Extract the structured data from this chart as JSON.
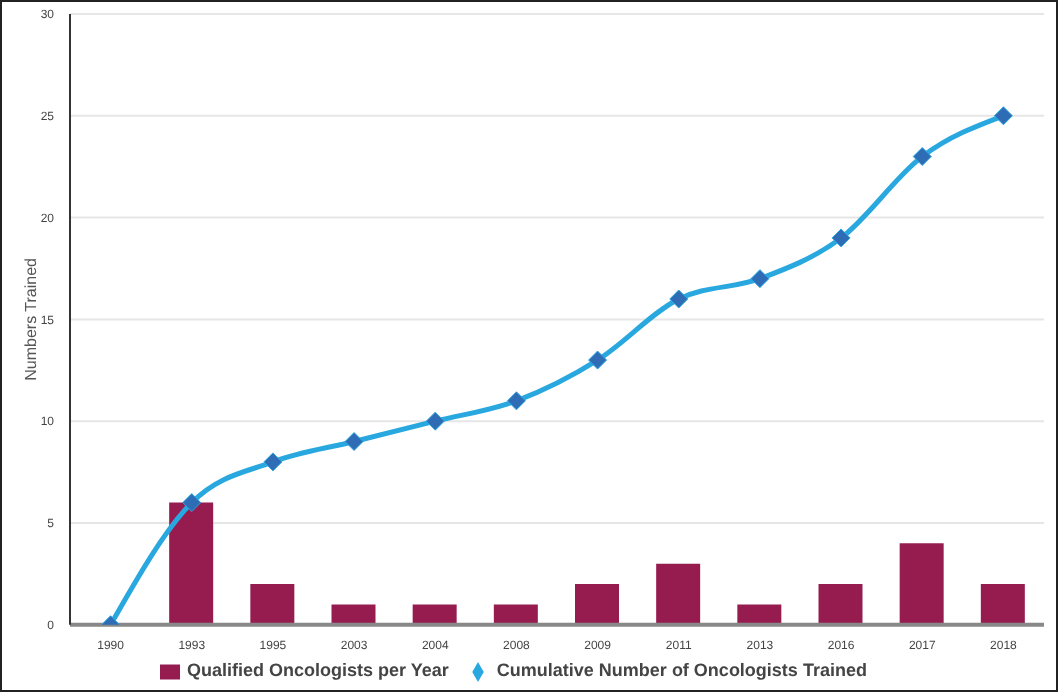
{
  "chart_data": {
    "type": "bar",
    "ylabel": "Numbers Trained",
    "categories": [
      "1990",
      "1993",
      "1995",
      "2003",
      "2004",
      "2008",
      "2009",
      "2011",
      "2013",
      "2016",
      "2017",
      "2018"
    ],
    "series": [
      {
        "name": "Qualified Oncologists per Year",
        "color": "#961c50",
        "values": [
          0,
          6,
          2,
          1,
          1,
          1,
          2,
          3,
          1,
          2,
          4,
          2
        ]
      },
      {
        "name": "Cumulative Number of Oncologists Trained",
        "type": "line",
        "color": "#29a8e0",
        "marker": "diamond",
        "values": [
          0,
          6,
          8,
          9,
          10,
          11,
          13,
          16,
          17,
          19,
          23,
          25
        ]
      }
    ],
    "ylim": [
      0,
      30
    ],
    "yticks": [
      0,
      5,
      10,
      15,
      20,
      25,
      30
    ],
    "grid": "y",
    "legend": "bottom"
  }
}
